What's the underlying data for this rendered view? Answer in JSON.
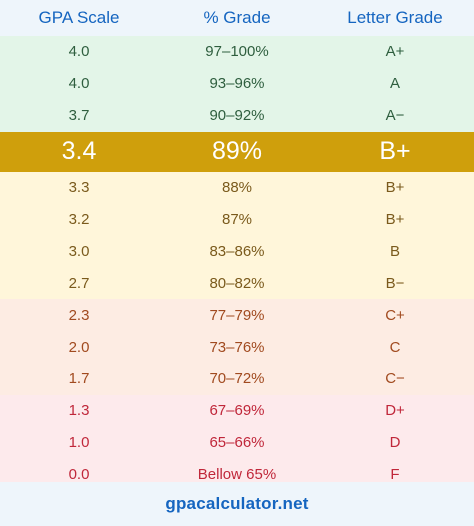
{
  "header": {
    "col1": "GPA Scale",
    "col2": "% Grade",
    "col3": "Letter Grade"
  },
  "rows": [
    {
      "gpa": "4.0",
      "percent": "97–100%",
      "letter": "A+",
      "tone": "green"
    },
    {
      "gpa": "4.0",
      "percent": "93–96%",
      "letter": "A",
      "tone": "green"
    },
    {
      "gpa": "3.7",
      "percent": "90–92%",
      "letter": "A−",
      "tone": "green"
    },
    {
      "gpa": "3.4",
      "percent": "89%",
      "letter": "B+",
      "tone": "highlight"
    },
    {
      "gpa": "3.3",
      "percent": "88%",
      "letter": "B+",
      "tone": "yellow"
    },
    {
      "gpa": "3.2",
      "percent": "87%",
      "letter": "B+",
      "tone": "yellow"
    },
    {
      "gpa": "3.0",
      "percent": "83–86%",
      "letter": "B",
      "tone": "yellow"
    },
    {
      "gpa": "2.7",
      "percent": "80–82%",
      "letter": "B−",
      "tone": "yellow"
    },
    {
      "gpa": "2.3",
      "percent": "77–79%",
      "letter": "C+",
      "tone": "orange"
    },
    {
      "gpa": "2.0",
      "percent": "73–76%",
      "letter": "C",
      "tone": "orange"
    },
    {
      "gpa": "1.7",
      "percent": "70–72%",
      "letter": "C−",
      "tone": "orange"
    },
    {
      "gpa": "1.3",
      "percent": "67–69%",
      "letter": "D+",
      "tone": "red"
    },
    {
      "gpa": "1.0",
      "percent": "65–66%",
      "letter": "D",
      "tone": "red"
    },
    {
      "gpa": "0.0",
      "percent": "Bellow 65%",
      "letter": "F",
      "tone": "red"
    }
  ],
  "footer": {
    "site": "gpacalculator.net"
  },
  "colors": {
    "header_text": "#1565c0",
    "highlight_bg": "#cf9f0c",
    "green_bg": "#e3f5e8",
    "yellow_bg": "#fff6da",
    "orange_bg": "#fdece3",
    "red_bg": "#fdeaec"
  }
}
